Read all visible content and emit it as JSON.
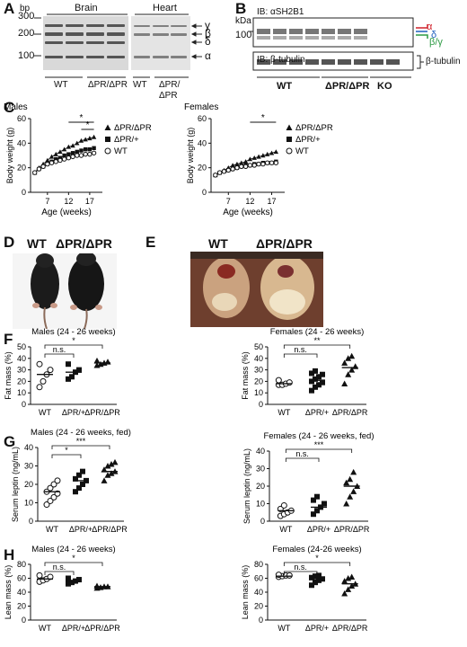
{
  "panels": {
    "a": "A",
    "b": "B",
    "c": "C",
    "d": "D",
    "e": "E",
    "f": "F",
    "g": "G",
    "h": "H"
  },
  "panel_a": {
    "unit": "bp",
    "ticks": [
      "300",
      "200",
      "100"
    ],
    "tissues": [
      "Brain",
      "Heart"
    ],
    "lane_labels": [
      "WT",
      "ΔPR/ΔPR",
      "WT",
      "ΔPR/",
      "ΔPR"
    ],
    "isoforms": [
      "γ",
      "β",
      "δ",
      "α"
    ]
  },
  "panel_b": {
    "unit": "kDa",
    "tick": "100",
    "blot1_label": "IB: αSH2B1",
    "blot2_label": "IB: β-tubulin",
    "tubulin_label": "β-tubulin",
    "isoforms": [
      "α",
      "δ",
      "β/γ"
    ],
    "groups": [
      "WT",
      "ΔPR/ΔPR",
      "KO"
    ],
    "colors": {
      "alpha": "#d0202a",
      "delta": "#1f5fbf",
      "beta_gamma": "#2e9b45"
    }
  },
  "panel_c": {
    "males_title": "Males",
    "females_title": "Females",
    "ylabel": "Body weight (g)",
    "xlabel": "Age (weeks)",
    "sig": "*",
    "chart_data": [
      {
        "type": "line",
        "title": "Males",
        "xlabel": "Age (weeks)",
        "ylabel": "Body weight (g)",
        "xticks": [
          7,
          12,
          17
        ],
        "yticks": [
          0,
          20,
          40,
          60
        ],
        "xlim": [
          3,
          20
        ],
        "ylim": [
          0,
          60
        ],
        "x": [
          4,
          5,
          6,
          7,
          8,
          9,
          10,
          11,
          12,
          13,
          14,
          15,
          16,
          17,
          18
        ],
        "series": [
          {
            "name": "ΔPR/ΔPR",
            "marker": "triangle",
            "values": [
              16,
              20,
              23,
              26,
              29,
              31,
              33,
              35,
              37,
              38,
              40,
              42,
              43,
              44,
              45
            ]
          },
          {
            "name": "ΔPR/+",
            "marker": "square",
            "values": [
              16,
              19,
              21,
              23,
              25,
              27,
              28,
              30,
              31,
              32,
              33,
              34,
              35,
              35,
              36
            ]
          },
          {
            "name": "WT",
            "marker": "open-circle",
            "values": [
              16,
              19,
              21,
              23,
              24,
              25,
              26,
              27,
              28,
              29,
              30,
              30,
              31,
              31,
              32
            ]
          }
        ],
        "legend": "right"
      },
      {
        "type": "line",
        "title": "Females",
        "xlabel": "Age (weeks)",
        "ylabel": "Body weight (g)",
        "xticks": [
          7,
          12,
          17
        ],
        "yticks": [
          0,
          20,
          40,
          60
        ],
        "xlim": [
          3,
          20
        ],
        "ylim": [
          0,
          60
        ],
        "x": [
          4,
          5,
          6,
          7,
          8,
          9,
          10,
          11,
          12,
          13,
          14,
          15,
          16,
          17,
          18
        ],
        "series": [
          {
            "name": "ΔPR/ΔPR",
            "marker": "triangle",
            "values": [
              14,
              16,
              18,
              20,
              22,
              23,
              24,
              25,
              27,
              28,
              29,
              30,
              31,
              32,
              33
            ]
          },
          {
            "name": "ΔPR/+",
            "marker": "square",
            "values": [
              14,
              16,
              17,
              18,
              19,
              20,
              21,
              22,
              22,
              23,
              23,
              24,
              24,
              24,
              25
            ]
          },
          {
            "name": "WT",
            "marker": "open-circle",
            "values": [
              14,
              16,
              17,
              18,
              19,
              20,
              21,
              21,
              22,
              22,
              23,
              23,
              24,
              24,
              24
            ]
          }
        ],
        "legend": "right"
      }
    ]
  },
  "panel_d": {
    "labels": [
      "WT",
      "ΔPR/ΔPR"
    ]
  },
  "panel_e": {
    "labels": [
      "WT",
      "ΔPR/ΔPR"
    ]
  },
  "scatter": [
    {
      "id": "f-males",
      "title": "Males (24 - 26 weeks)",
      "ylabel": "Fat mass (%)",
      "yticks": [
        0,
        10,
        20,
        30,
        40,
        50
      ],
      "ylim": [
        0,
        50
      ],
      "categories": [
        "WT",
        "ΔPR/+",
        "ΔPR/ΔPR"
      ],
      "markers": [
        "open-circle",
        "square",
        "triangle"
      ],
      "points": [
        [
          15,
          20,
          26,
          30,
          35
        ],
        [
          22,
          24,
          28,
          30,
          35
        ],
        [
          34,
          35,
          36,
          37,
          38
        ]
      ],
      "means": [
        26,
        28,
        36
      ],
      "brackets": [
        {
          "from": 0,
          "to": 1,
          "label": "n.s.",
          "level": 0
        },
        {
          "from": 0,
          "to": 2,
          "label": "*",
          "level": 1
        }
      ]
    },
    {
      "id": "f-females",
      "title": "Females (24 - 26 weeks)",
      "ylabel": "Fat mass (%)",
      "yticks": [
        0,
        10,
        20,
        30,
        40,
        50
      ],
      "ylim": [
        0,
        50
      ],
      "categories": [
        "WT",
        "ΔPR/+",
        "ΔPR/ΔPR"
      ],
      "markers": [
        "open-circle",
        "square",
        "triangle"
      ],
      "points": [
        [
          17,
          17,
          18,
          19,
          21
        ],
        [
          12,
          15,
          17,
          19,
          20,
          22,
          24,
          26,
          27,
          29
        ],
        [
          18,
          26,
          30,
          33,
          36,
          40,
          42
        ]
      ],
      "means": [
        18,
        21,
        32
      ],
      "brackets": [
        {
          "from": 0,
          "to": 1,
          "label": "n.s.",
          "level": 0
        },
        {
          "from": 0,
          "to": 2,
          "label": "**",
          "level": 1
        }
      ]
    },
    {
      "id": "g-males",
      "title": "Males (24 - 26 weeks, fed)",
      "ylabel": "Serum leptin (ng/mL)",
      "yticks": [
        0,
        10,
        20,
        30,
        40
      ],
      "ylim": [
        0,
        40
      ],
      "categories": [
        "WT",
        "ΔPR/+",
        "ΔPR/ΔPR"
      ],
      "markers": [
        "open-circle",
        "square",
        "triangle"
      ],
      "points": [
        [
          9,
          11,
          13,
          15,
          16,
          18,
          20,
          22
        ],
        [
          16,
          18,
          20,
          22,
          23,
          25,
          27
        ],
        [
          22,
          25,
          26,
          27,
          28,
          30,
          31,
          32
        ]
      ],
      "means": [
        16,
        22,
        27
      ],
      "brackets": [
        {
          "from": 0,
          "to": 1,
          "label": "*",
          "level": 0
        },
        {
          "from": 0,
          "to": 2,
          "label": "***",
          "level": 1
        }
      ]
    },
    {
      "id": "g-females",
      "title": "Females (24 - 26 weeks, fed)",
      "ylabel": "Serum leptin (ng/mL)",
      "yticks": [
        0,
        10,
        20,
        30,
        40
      ],
      "ylim": [
        0,
        40
      ],
      "categories": [
        "WT",
        "ΔPR/+",
        "ΔPR/ΔPR"
      ],
      "markers": [
        "open-circle",
        "square",
        "triangle"
      ],
      "points": [
        [
          3,
          4,
          5,
          6,
          7,
          9
        ],
        [
          4,
          6,
          8,
          10,
          12,
          14
        ],
        [
          10,
          14,
          17,
          20,
          22,
          24,
          28
        ]
      ],
      "means": [
        6,
        8,
        20
      ],
      "brackets": [
        {
          "from": 0,
          "to": 1,
          "label": "n.s.",
          "level": 0
        },
        {
          "from": 0,
          "to": 2,
          "label": "***",
          "level": 1
        }
      ]
    },
    {
      "id": "h-males",
      "title": "Males (24 - 26 weeks)",
      "ylabel": "Lean mass (%)",
      "yticks": [
        0,
        20,
        40,
        60,
        80
      ],
      "ylim": [
        0,
        80
      ],
      "categories": [
        "WT",
        "ΔPR/+",
        "ΔPR/ΔPR"
      ],
      "markers": [
        "open-circle",
        "square",
        "triangle"
      ],
      "points": [
        [
          55,
          57,
          59,
          62,
          64
        ],
        [
          52,
          54,
          56,
          58,
          60
        ],
        [
          46,
          47,
          48,
          48,
          49
        ]
      ],
      "means": [
        59,
        56,
        48
      ],
      "brackets": [
        {
          "from": 0,
          "to": 1,
          "label": "n.s.",
          "level": 0
        },
        {
          "from": 0,
          "to": 2,
          "label": "*",
          "level": 1
        }
      ]
    },
    {
      "id": "h-females",
      "title": "Females (24-26 weeks)",
      "ylabel": "Lean mass (%)",
      "yticks": [
        0,
        20,
        40,
        60,
        80
      ],
      "ylim": [
        0,
        80
      ],
      "categories": [
        "WT",
        "ΔPR/+",
        "ΔPR/ΔPR"
      ],
      "markers": [
        "open-circle",
        "square",
        "triangle"
      ],
      "points": [
        [
          62,
          63,
          64,
          64,
          65
        ],
        [
          50,
          54,
          57,
          59,
          61,
          63,
          64
        ],
        [
          38,
          44,
          49,
          52,
          56,
          60,
          62
        ]
      ],
      "means": [
        63,
        58,
        52
      ],
      "brackets": [
        {
          "from": 0,
          "to": 1,
          "label": "n.s.",
          "level": 0
        },
        {
          "from": 0,
          "to": 2,
          "label": "*",
          "level": 1
        }
      ]
    }
  ]
}
